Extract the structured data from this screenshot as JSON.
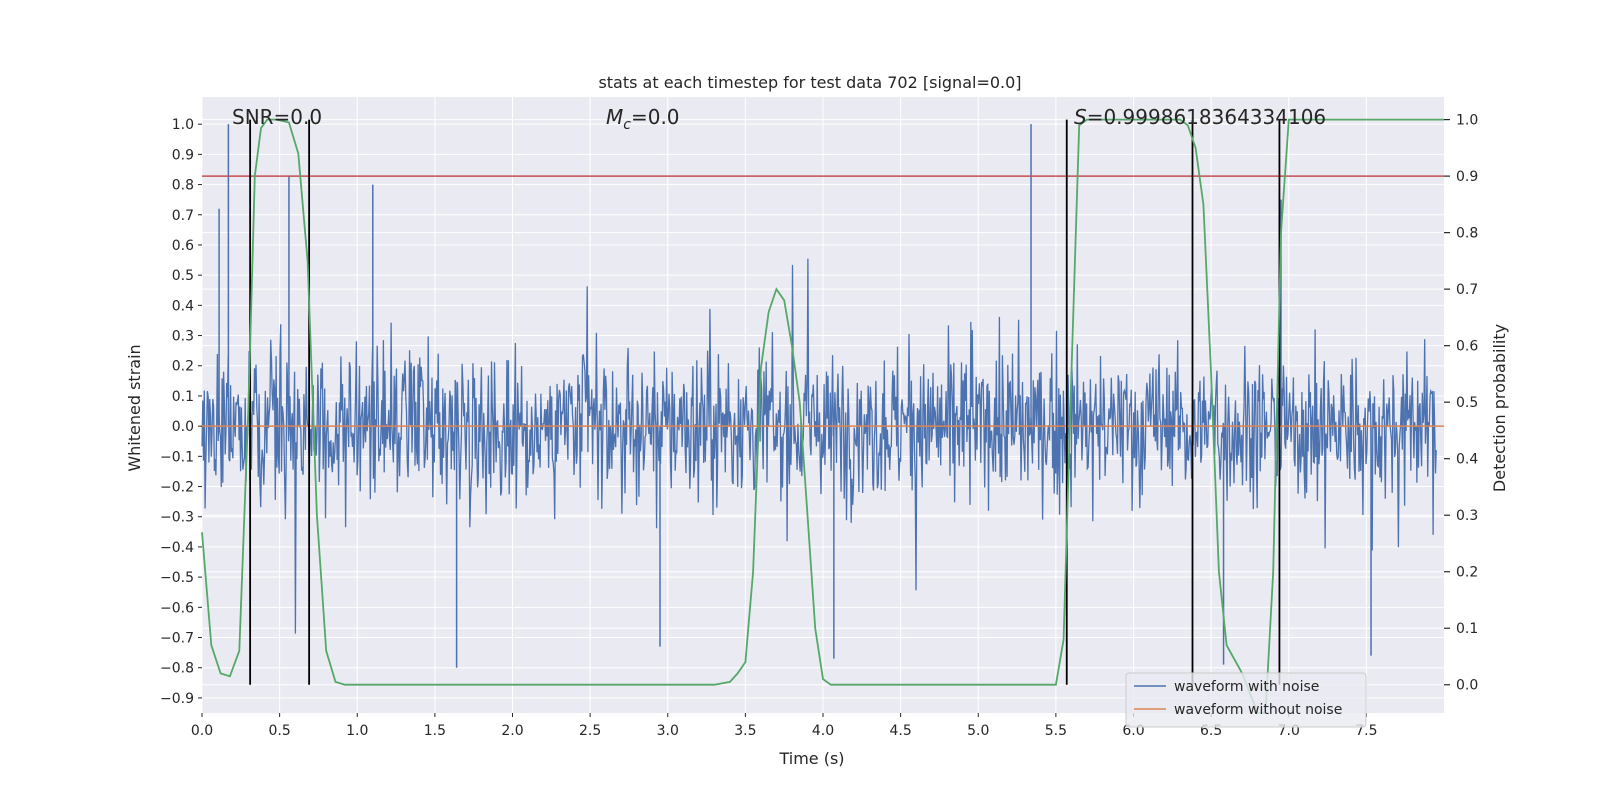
{
  "chart_data": {
    "type": "line",
    "title": "stats at each timestep for test data 702 [signal=0.0]",
    "xlabel": "Time (s)",
    "ylabel": "Whitened strain",
    "y2label": "Detection probability",
    "xlim": [
      0.0,
      8.0
    ],
    "ylim": [
      -0.95,
      1.09
    ],
    "y2lim": [
      -0.05,
      1.04
    ],
    "xticks": [
      "0.0",
      "0.5",
      "1.0",
      "1.5",
      "2.0",
      "2.5",
      "3.0",
      "3.5",
      "4.0",
      "4.5",
      "5.0",
      "5.5",
      "6.0",
      "6.5",
      "7.0",
      "7.5"
    ],
    "yticks": [
      "-0.9",
      "-0.8",
      "-0.7",
      "-0.6",
      "-0.5",
      "-0.4",
      "-0.3",
      "-0.2",
      "-0.1",
      "0.0",
      "0.1",
      "0.2",
      "0.3",
      "0.4",
      "0.5",
      "0.6",
      "0.7",
      "0.8",
      "0.9",
      "1.0"
    ],
    "y2ticks": [
      "0.0",
      "0.1",
      "0.2",
      "0.3",
      "0.4",
      "0.5",
      "0.6",
      "0.7",
      "0.8",
      "0.9",
      "1.0"
    ],
    "annotations": {
      "snr": "SNR=0.0",
      "mc": "M",
      "mc_sub": "c",
      "mc_value": "=0.0",
      "s": "S",
      "s_value": "=0.9998618364334106"
    },
    "series": [
      {
        "name": "waveform with noise",
        "color": "#4c72b0",
        "axis": "left",
        "description": "dense whitened noise, bulk roughly -0.3 to 0.3, spikes up to about 1.0 and down to about -0.8",
        "spikes_up": [
          [
            0.17,
            1.0
          ],
          [
            0.56,
            0.83
          ],
          [
            5.34,
            1.0
          ],
          [
            0.11,
            0.72
          ],
          [
            1.1,
            0.8
          ],
          [
            6.95,
            0.75
          ]
        ],
        "spikes_down": [
          [
            1.64,
            -0.8
          ],
          [
            4.07,
            -0.77
          ],
          [
            6.58,
            -0.79
          ],
          [
            2.95,
            -0.73
          ],
          [
            7.53,
            -0.76
          ]
        ]
      },
      {
        "name": "waveform without noise",
        "color": "#dd8452",
        "axis": "left",
        "x": [
          0.0,
          8.0
        ],
        "values": [
          0.0,
          0.0
        ]
      },
      {
        "name": "detection probability",
        "color": "#55a868",
        "axis": "right",
        "x": [
          0.0,
          0.06,
          0.12,
          0.18,
          0.24,
          0.3,
          0.34,
          0.38,
          0.42,
          0.48,
          0.56,
          0.62,
          0.68,
          0.74,
          0.8,
          0.86,
          0.92,
          1.0,
          1.5,
          2.0,
          2.5,
          3.0,
          3.3,
          3.4,
          3.45,
          3.5,
          3.55,
          3.6,
          3.65,
          3.7,
          3.75,
          3.8,
          3.85,
          3.9,
          3.95,
          4.0,
          4.05,
          4.1,
          4.5,
          5.0,
          5.3,
          5.5,
          5.55,
          5.6,
          5.65,
          5.7,
          5.8,
          6.0,
          6.2,
          6.3,
          6.35,
          6.4,
          6.45,
          6.5,
          6.55,
          6.6,
          6.7,
          6.8,
          6.85,
          6.9,
          6.95,
          7.0,
          7.1,
          7.5,
          8.0
        ],
        "values": [
          0.27,
          0.07,
          0.02,
          0.015,
          0.06,
          0.5,
          0.9,
          0.985,
          1.0,
          1.0,
          0.995,
          0.94,
          0.75,
          0.3,
          0.06,
          0.005,
          0.0,
          0.0,
          0.0,
          0.0,
          0.0,
          0.0,
          0.0,
          0.005,
          0.02,
          0.04,
          0.2,
          0.56,
          0.66,
          0.7,
          0.68,
          0.6,
          0.5,
          0.3,
          0.1,
          0.01,
          0.0,
          0.0,
          0.0,
          0.0,
          0.0,
          0.0,
          0.08,
          0.55,
          0.99,
          1.0,
          1.0,
          1.0,
          1.0,
          1.0,
          0.99,
          0.95,
          0.85,
          0.55,
          0.2,
          0.07,
          0.02,
          -0.05,
          -0.05,
          0.2,
          0.8,
          1.0,
          1.0,
          1.0,
          1.0
        ]
      }
    ],
    "hlines": [
      {
        "axis": "right",
        "y": 0.9,
        "color": "#c44e52"
      }
    ],
    "vlines": [
      {
        "x": 0.31,
        "y2": [
          0.0,
          1.0
        ],
        "color": "#000000"
      },
      {
        "x": 0.69,
        "y2": [
          0.0,
          1.0
        ],
        "color": "#000000"
      },
      {
        "x": 5.57,
        "y2": [
          0.0,
          1.0
        ],
        "color": "#000000"
      },
      {
        "x": 6.38,
        "y2": [
          0.0,
          1.0
        ],
        "color": "#000000"
      },
      {
        "x": 6.94,
        "y2": [
          0.0,
          1.0
        ],
        "color": "#000000"
      }
    ],
    "legend": {
      "placement": "lower-right",
      "entries": [
        "waveform with noise",
        "waveform without noise"
      ]
    },
    "style": {
      "background": "#eaeaf2",
      "grid": "#ffffff",
      "text": "#262626"
    }
  }
}
